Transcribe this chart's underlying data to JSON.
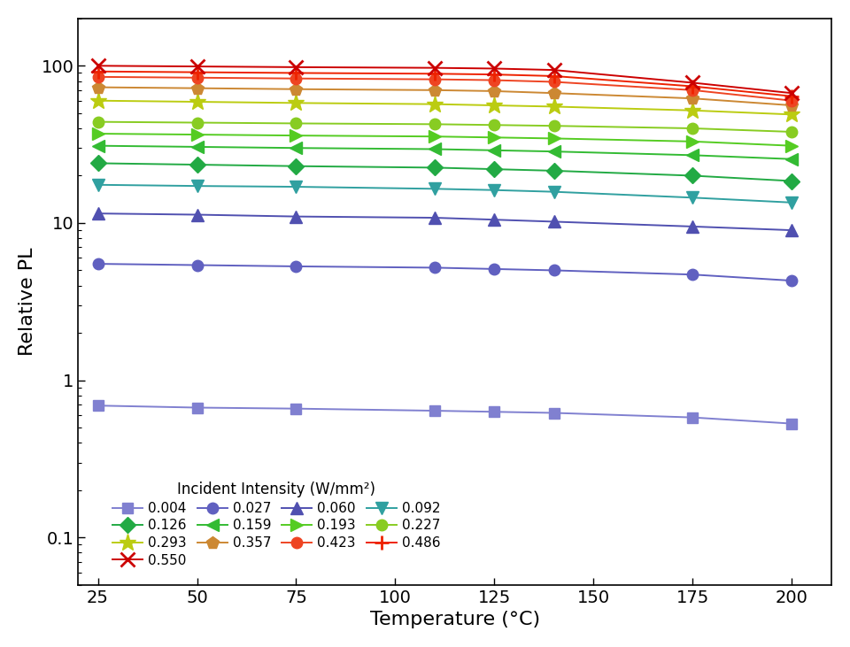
{
  "temperatures": [
    25,
    50,
    75,
    110,
    125,
    140,
    175,
    200
  ],
  "series": [
    {
      "label": "0.004",
      "color": "#8080d0",
      "marker": "s",
      "values": [
        0.69,
        0.67,
        0.66,
        0.64,
        0.63,
        0.62,
        0.58,
        0.53
      ]
    },
    {
      "label": "0.027",
      "color": "#6060c0",
      "marker": "o",
      "values": [
        5.5,
        5.4,
        5.3,
        5.2,
        5.1,
        5.0,
        4.7,
        4.3
      ]
    },
    {
      "label": "0.060",
      "color": "#5050b0",
      "marker": "^",
      "values": [
        11.5,
        11.3,
        11.0,
        10.8,
        10.5,
        10.2,
        9.5,
        9.0
      ]
    },
    {
      "label": "0.092",
      "color": "#30a0a0",
      "marker": "v",
      "values": [
        17.5,
        17.2,
        17.0,
        16.5,
        16.2,
        15.8,
        14.5,
        13.5
      ]
    },
    {
      "label": "0.126",
      "color": "#22aa44",
      "marker": "D",
      "values": [
        24.0,
        23.5,
        23.0,
        22.5,
        22.0,
        21.5,
        20.0,
        18.5
      ]
    },
    {
      "label": "0.159",
      "color": "#33bb33",
      "marker": "<",
      "values": [
        31.0,
        30.5,
        30.0,
        29.5,
        29.0,
        28.5,
        27.0,
        25.5
      ]
    },
    {
      "label": "0.193",
      "color": "#55cc22",
      "marker": ">",
      "values": [
        37.0,
        36.5,
        36.0,
        35.5,
        35.0,
        34.5,
        33.0,
        31.0
      ]
    },
    {
      "label": "0.227",
      "color": "#88cc22",
      "marker": "o",
      "values": [
        44.0,
        43.5,
        43.0,
        42.5,
        42.0,
        41.5,
        40.0,
        38.0
      ]
    },
    {
      "label": "0.293",
      "color": "#bbcc11",
      "marker": "*",
      "values": [
        60.0,
        59.0,
        58.0,
        57.0,
        56.0,
        55.0,
        52.0,
        49.0
      ]
    },
    {
      "label": "0.357",
      "color": "#cc8833",
      "marker": "p",
      "values": [
        73.0,
        72.0,
        71.0,
        70.0,
        69.0,
        67.0,
        62.0,
        56.0
      ]
    },
    {
      "label": "0.423",
      "color": "#ee4422",
      "marker": "o",
      "values": [
        85.0,
        84.0,
        83.0,
        82.0,
        81.0,
        79.0,
        70.0,
        60.0
      ]
    },
    {
      "label": "0.486",
      "color": "#ee2200",
      "marker": "+",
      "values": [
        92.0,
        91.0,
        90.0,
        89.0,
        88.0,
        86.0,
        74.0,
        64.0
      ]
    },
    {
      "label": "0.550",
      "color": "#cc0000",
      "marker": "x",
      "values": [
        100.0,
        99.0,
        98.0,
        97.0,
        96.0,
        94.0,
        78.0,
        67.0
      ]
    }
  ],
  "xlabel": "Temperature (°C)",
  "ylabel": "Relative PL",
  "legend_title": "Incident Intensity (W/mm²)",
  "ylim": [
    0.05,
    200
  ],
  "xlim": [
    20,
    210
  ],
  "xticks": [
    25,
    50,
    75,
    100,
    125,
    150,
    175,
    200
  ],
  "background_color": "#ffffff"
}
